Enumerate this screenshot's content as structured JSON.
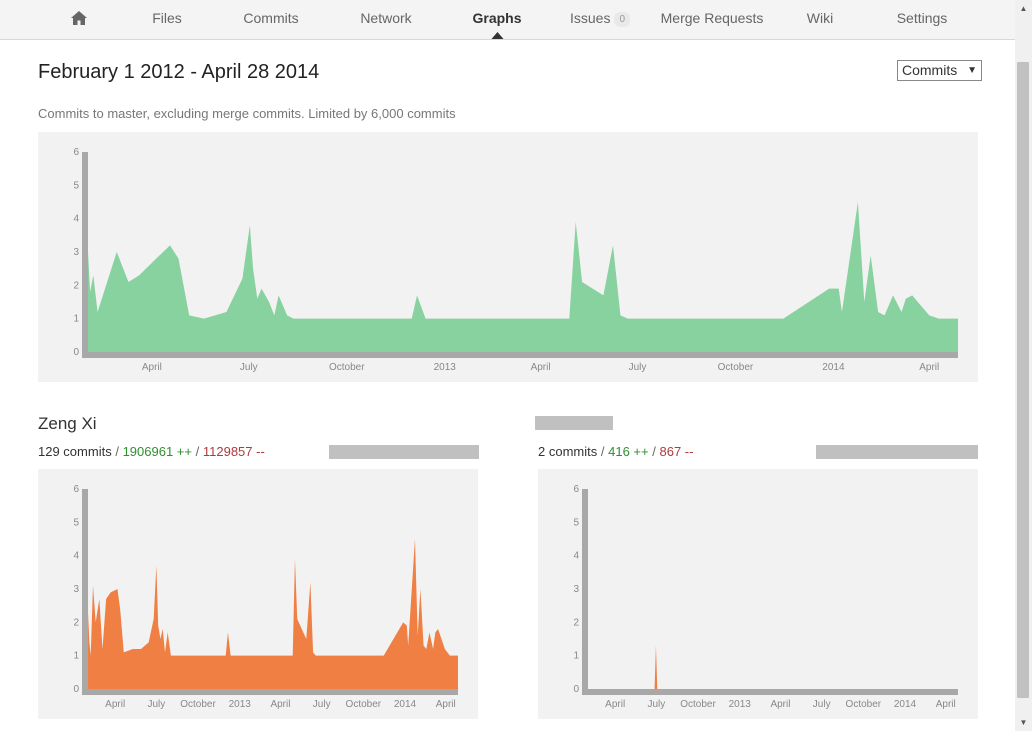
{
  "nav": {
    "items": [
      {
        "label": "",
        "icon": "home-icon"
      },
      {
        "label": "Files"
      },
      {
        "label": "Commits"
      },
      {
        "label": "Network"
      },
      {
        "label": "Graphs",
        "active": true
      },
      {
        "label": "Issues",
        "badge": "0"
      },
      {
        "label": "Merge Requests"
      },
      {
        "label": "Wiki"
      },
      {
        "label": "Settings"
      }
    ]
  },
  "header": {
    "title": "February 1 2012 - April 28 2014",
    "metric_select": "Commits",
    "subtitle": "Commits to master, excluding merge commits. Limited by 6,000 commits"
  },
  "colors": {
    "main_fill": "#87d29f",
    "contrib_fill": "#f07f43",
    "axis": "#a8a8a8",
    "plot_bg": "#f2f2f2"
  },
  "contributors": [
    {
      "name": "Zeng Xi",
      "commits": "129 commits",
      "additions": "1906961 ++",
      "deletions": "1129857 --"
    },
    {
      "name": "",
      "commits": "2 commits",
      "additions": "416 ++",
      "deletions": "867 --"
    }
  ],
  "chart_data": [
    {
      "type": "area",
      "title": "",
      "x_unit": "date",
      "ylim": [
        0,
        6
      ],
      "yticks": [
        "0",
        "1",
        "2",
        "3",
        "4",
        "5",
        "6"
      ],
      "xticks": [
        {
          "date": "2012-04-01",
          "label": "April"
        },
        {
          "date": "2012-07-01",
          "label": "July"
        },
        {
          "date": "2012-10-01",
          "label": "October"
        },
        {
          "date": "2013-01-01",
          "label": "2013"
        },
        {
          "date": "2013-04-01",
          "label": "April"
        },
        {
          "date": "2013-07-01",
          "label": "July"
        },
        {
          "date": "2013-10-01",
          "label": "October"
        },
        {
          "date": "2014-01-01",
          "label": "2014"
        },
        {
          "date": "2014-04-01",
          "label": "April"
        }
      ],
      "series": [
        {
          "points": [
            [
              "2012-02-01",
              3
            ],
            [
              "2012-02-03",
              1.8
            ],
            [
              "2012-02-06",
              2.3
            ],
            [
              "2012-02-10",
              1.2
            ],
            [
              "2012-02-20",
              2.2
            ],
            [
              "2012-02-28",
              3
            ],
            [
              "2012-03-10",
              2.1
            ],
            [
              "2012-03-20",
              2.3
            ],
            [
              "2012-04-05",
              2.8
            ],
            [
              "2012-04-18",
              3.2
            ],
            [
              "2012-04-26",
              2.8
            ],
            [
              "2012-05-06",
              1.1
            ],
            [
              "2012-05-20",
              1
            ],
            [
              "2012-06-10",
              1.2
            ],
            [
              "2012-06-25",
              2.2
            ],
            [
              "2012-07-02",
              3.8
            ],
            [
              "2012-07-05",
              2.5
            ],
            [
              "2012-07-09",
              1.6
            ],
            [
              "2012-07-13",
              1.9
            ],
            [
              "2012-07-20",
              1.5
            ],
            [
              "2012-07-25",
              1.1
            ],
            [
              "2012-07-29",
              1.7
            ],
            [
              "2012-08-06",
              1.1
            ],
            [
              "2012-08-12",
              1
            ],
            [
              "2012-12-01",
              1
            ],
            [
              "2012-12-06",
              1.7
            ],
            [
              "2012-12-14",
              1
            ],
            [
              "2013-04-28",
              1
            ],
            [
              "2013-05-04",
              3.9
            ],
            [
              "2013-05-10",
              2.1
            ],
            [
              "2013-05-30",
              1.7
            ],
            [
              "2013-06-08",
              3.2
            ],
            [
              "2013-06-15",
              1.1
            ],
            [
              "2013-06-22",
              1
            ],
            [
              "2013-11-15",
              1
            ],
            [
              "2013-12-28",
              1.9
            ],
            [
              "2014-01-06",
              1.9
            ],
            [
              "2014-01-09",
              1.2
            ],
            [
              "2014-01-24",
              4.5
            ],
            [
              "2014-01-30",
              1.5
            ],
            [
              "2014-02-05",
              2.9
            ],
            [
              "2014-02-12",
              1.2
            ],
            [
              "2014-02-18",
              1.1
            ],
            [
              "2014-02-26",
              1.7
            ],
            [
              "2014-03-06",
              1.2
            ],
            [
              "2014-03-10",
              1.6
            ],
            [
              "2014-03-16",
              1.7
            ],
            [
              "2014-04-01",
              1.1
            ],
            [
              "2014-04-10",
              1
            ],
            [
              "2014-04-28",
              1
            ]
          ]
        }
      ]
    },
    {
      "type": "area",
      "title": "Zeng Xi",
      "x_unit": "date",
      "ylim": [
        0,
        6
      ],
      "yticks": [
        "0",
        "1",
        "2",
        "3",
        "4",
        "5",
        "6"
      ],
      "xticks": [
        {
          "date": "2012-04-01",
          "label": "April"
        },
        {
          "date": "2012-07-01",
          "label": "July"
        },
        {
          "date": "2012-10-01",
          "label": "October"
        },
        {
          "date": "2013-01-01",
          "label": "2013"
        },
        {
          "date": "2013-04-01",
          "label": "April"
        },
        {
          "date": "2013-07-01",
          "label": "July"
        },
        {
          "date": "2013-10-01",
          "label": "October"
        },
        {
          "date": "2014-01-01",
          "label": "2014"
        },
        {
          "date": "2014-04-01",
          "label": "April"
        }
      ],
      "series": [
        {
          "points": [
            [
              "2012-02-01",
              2.3
            ],
            [
              "2012-02-04",
              1.4
            ],
            [
              "2012-02-07",
              1
            ],
            [
              "2012-02-12",
              3.1
            ],
            [
              "2012-02-18",
              2
            ],
            [
              "2012-02-26",
              2.7
            ],
            [
              "2012-03-04",
              1.2
            ],
            [
              "2012-03-12",
              2.7
            ],
            [
              "2012-03-22",
              2.9
            ],
            [
              "2012-04-06",
              3
            ],
            [
              "2012-04-12",
              2.4
            ],
            [
              "2012-04-20",
              1.1
            ],
            [
              "2012-05-10",
              1.2
            ],
            [
              "2012-05-28",
              1.2
            ],
            [
              "2012-06-14",
              1.4
            ],
            [
              "2012-06-25",
              2.1
            ],
            [
              "2012-07-01",
              3.7
            ],
            [
              "2012-07-05",
              1.9
            ],
            [
              "2012-07-10",
              1.5
            ],
            [
              "2012-07-15",
              1.8
            ],
            [
              "2012-07-20",
              1.1
            ],
            [
              "2012-07-26",
              1.7
            ],
            [
              "2012-08-02",
              1
            ],
            [
              "2012-12-01",
              1
            ],
            [
              "2012-12-06",
              1.7
            ],
            [
              "2012-12-12",
              1
            ],
            [
              "2013-04-28",
              1
            ],
            [
              "2013-05-03",
              3.9
            ],
            [
              "2013-05-08",
              2.1
            ],
            [
              "2013-05-28",
              1.5
            ],
            [
              "2013-06-06",
              3.2
            ],
            [
              "2013-06-12",
              1.1
            ],
            [
              "2013-06-18",
              1
            ],
            [
              "2013-11-15",
              1
            ],
            [
              "2013-12-28",
              2
            ],
            [
              "2014-01-05",
              1.9
            ],
            [
              "2014-01-08",
              1.3
            ],
            [
              "2014-01-23",
              4.5
            ],
            [
              "2014-01-29",
              1.6
            ],
            [
              "2014-02-04",
              3
            ],
            [
              "2014-02-11",
              1.3
            ],
            [
              "2014-02-17",
              1.2
            ],
            [
              "2014-02-24",
              1.7
            ],
            [
              "2014-03-04",
              1.2
            ],
            [
              "2014-03-09",
              1.7
            ],
            [
              "2014-03-15",
              1.8
            ],
            [
              "2014-03-30",
              1.2
            ],
            [
              "2014-04-10",
              1
            ],
            [
              "2014-04-28",
              1
            ]
          ]
        }
      ]
    },
    {
      "type": "area",
      "title": "",
      "x_unit": "date",
      "ylim": [
        0,
        6
      ],
      "yticks": [
        "0",
        "1",
        "2",
        "3",
        "4",
        "5",
        "6"
      ],
      "xticks": [
        {
          "date": "2012-04-01",
          "label": "April"
        },
        {
          "date": "2012-07-01",
          "label": "July"
        },
        {
          "date": "2012-10-01",
          "label": "October"
        },
        {
          "date": "2013-01-01",
          "label": "2013"
        },
        {
          "date": "2013-04-01",
          "label": "April"
        },
        {
          "date": "2013-07-01",
          "label": "July"
        },
        {
          "date": "2013-10-01",
          "label": "October"
        },
        {
          "date": "2014-01-01",
          "label": "2014"
        },
        {
          "date": "2014-04-01",
          "label": "April"
        }
      ],
      "series": [
        {
          "points": [
            [
              "2012-02-01",
              0
            ],
            [
              "2012-06-27",
              0
            ],
            [
              "2012-06-30",
              1.3
            ],
            [
              "2012-07-03",
              0
            ],
            [
              "2014-04-28",
              0
            ]
          ]
        }
      ]
    }
  ]
}
